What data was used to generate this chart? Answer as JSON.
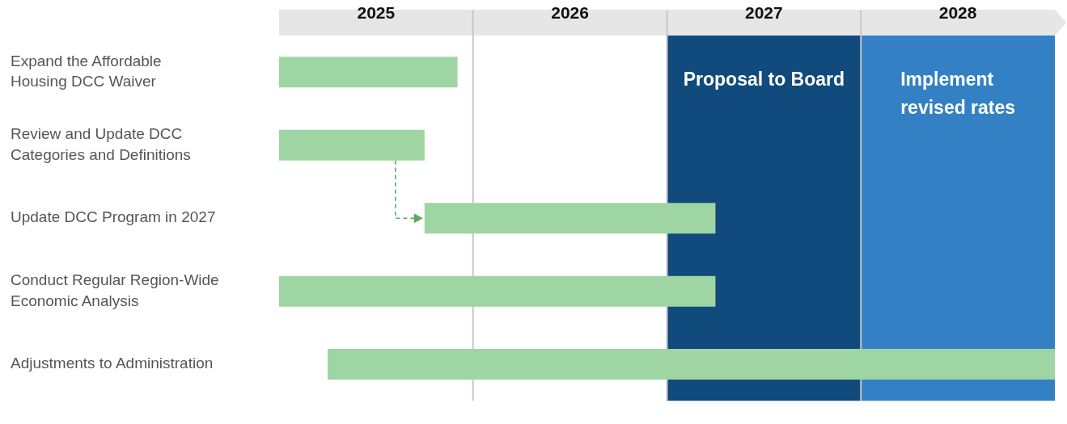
{
  "chart_data": {
    "type": "bar",
    "orientation": "horizontal",
    "categories": [
      "Expand the Affordable\nHousing DCC Waiver",
      "Review and Update DCC\nCategories and Definitions",
      "Update DCC Program in 2027",
      "Conduct Regular Region-Wide\nEconomic Analysis",
      "Adjustments to Administration"
    ],
    "base": [
      2025,
      2025,
      2025.75,
      2025,
      2025.25
    ],
    "values": [
      0.92,
      0.75,
      1.5,
      2.25,
      3.75
    ],
    "color": "#9fd4a3",
    "xlim": [
      2025,
      2029
    ],
    "xticks": [
      {
        "value": 2025.5,
        "label": "2025"
      },
      {
        "value": 2026,
        "label": null
      },
      {
        "value": 2026.5,
        "label": "2026"
      },
      {
        "value": 2027,
        "label": null
      },
      {
        "value": 2027.5,
        "label": "2027"
      },
      {
        "value": 2028,
        "label": null
      },
      {
        "value": 2028.5,
        "label": "2028"
      }
    ],
    "grid": "x",
    "bands": [
      {
        "axis": "x",
        "from": 2027,
        "to": 2028,
        "label": "Proposal to Board",
        "color": "#114a7c"
      },
      {
        "axis": "x",
        "from": 2028,
        "to": 2029,
        "label": "Implement\nrevised rates",
        "color": "#3380c4"
      }
    ]
  }
}
